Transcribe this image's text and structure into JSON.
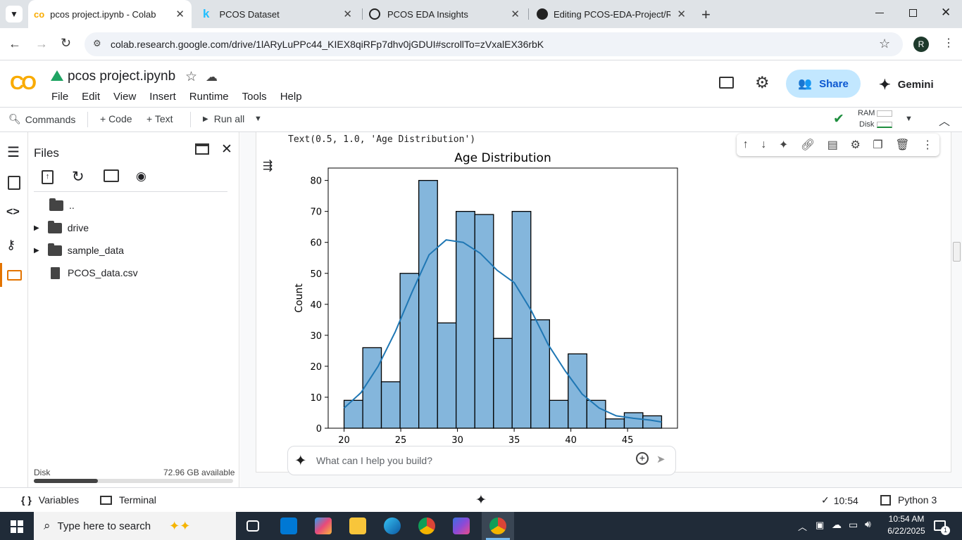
{
  "browser": {
    "tabs": [
      {
        "title": "pcos project.ipynb - Colab",
        "icon": "colab-icon"
      },
      {
        "title": "PCOS Dataset",
        "icon": "kaggle-icon"
      },
      {
        "title": "PCOS EDA Insights",
        "icon": "openai-icon"
      },
      {
        "title": "Editing PCOS-EDA-Project/README",
        "icon": "github-icon"
      }
    ],
    "url": "colab.research.google.com/drive/1lARyLuPPc44_KIEX8qiRFp7dhv0jGDUI#scrollTo=zVxalEX36rbK",
    "profile_initial": "R"
  },
  "colab": {
    "notebook_title": "pcos project.ipynb",
    "menu": [
      "File",
      "Edit",
      "View",
      "Insert",
      "Runtime",
      "Tools",
      "Help"
    ],
    "share_label": "Share",
    "gemini_label": "Gemini",
    "commands_label": "Commands",
    "code_label": "+ Code",
    "text_label": "+ Text",
    "run_all_label": "Run all",
    "ram_label": "RAM",
    "disk_label": "Disk"
  },
  "files_panel": {
    "title": "Files",
    "items": [
      {
        "name": "..",
        "type": "folder-open"
      },
      {
        "name": "drive",
        "type": "folder"
      },
      {
        "name": "sample_data",
        "type": "folder"
      },
      {
        "name": "PCOS_data.csv",
        "type": "file"
      }
    ],
    "disk_label": "Disk",
    "disk_available": "72.96 GB available",
    "disk_used_fraction": 0.32
  },
  "cell": {
    "output_text": "Text(0.5, 1.0, 'Age Distribution')",
    "prompt_placeholder": "What can I help you build?"
  },
  "chart_data": {
    "type": "bar",
    "title": "Age Distribution",
    "xlabel": "",
    "ylabel": "Count",
    "bin_edges": [
      20,
      21.65,
      23.29,
      24.94,
      26.59,
      28.24,
      29.88,
      31.53,
      33.18,
      34.82,
      36.47,
      38.12,
      39.76,
      41.41,
      43.06,
      44.71,
      46.35,
      48
    ],
    "values": [
      9,
      26,
      15,
      50,
      80,
      34,
      70,
      69,
      29,
      70,
      35,
      9,
      24,
      9,
      3,
      5,
      4
    ],
    "kde": [
      [
        20,
        6.5
      ],
      [
        21.5,
        11.5
      ],
      [
        23,
        20
      ],
      [
        24.5,
        31
      ],
      [
        26,
        44
      ],
      [
        27.5,
        56
      ],
      [
        29,
        60.8
      ],
      [
        30.5,
        60
      ],
      [
        32,
        56.5
      ],
      [
        33.5,
        51
      ],
      [
        35,
        47
      ],
      [
        36.5,
        38
      ],
      [
        38,
        27
      ],
      [
        39.5,
        18.5
      ],
      [
        41,
        11
      ],
      [
        42.5,
        6.5
      ],
      [
        44,
        4
      ],
      [
        45.5,
        3.2
      ],
      [
        47,
        2.6
      ],
      [
        48,
        2
      ]
    ],
    "xlim": [
      18.6,
      49.4
    ],
    "ylim": [
      0,
      84
    ],
    "xticks": [
      20,
      25,
      30,
      35,
      40,
      45
    ],
    "yticks": [
      0,
      10,
      20,
      30,
      40,
      50,
      60,
      70,
      80
    ],
    "bar_color": "#84b6dc",
    "kde_color": "#1f77b4",
    "grid": false
  },
  "status": {
    "variables_label": "Variables",
    "terminal_label": "Terminal",
    "time": "10:54",
    "runtime": "Python 3"
  },
  "taskbar": {
    "search_placeholder": "Type here to search",
    "clock_time": "10:54 AM",
    "clock_date": "6/22/2025",
    "notification_count": "1"
  }
}
